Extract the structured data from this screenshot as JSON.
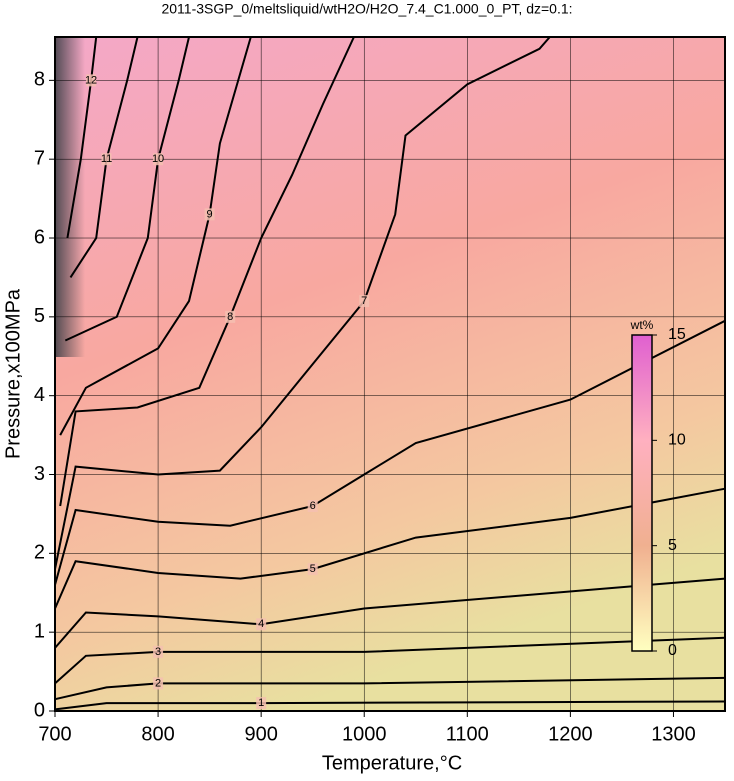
{
  "chart_data": {
    "type": "contour",
    "title": "2011-3SGP_0/meltsliquid/wtH2O/H2O_7.4_C1.000_0_PT, dz=0.1:",
    "x_label": "Temperature,°C",
    "y_label": "Pressure,x100MPa",
    "xlim": [
      700,
      1350
    ],
    "ylim": [
      0,
      8.55
    ],
    "xticks": [
      700,
      800,
      900,
      1000,
      1100,
      1200,
      1300
    ],
    "yticks": [
      0,
      1,
      2,
      3,
      4,
      5,
      6,
      7,
      8
    ],
    "grid": true,
    "line_color": "#000000",
    "contours": [
      {
        "level": 1,
        "x": [
          700,
          750,
          900,
          1350
        ],
        "y": [
          0.02,
          0.1,
          0.1,
          0.12
        ]
      },
      {
        "level": 2,
        "x": [
          700,
          750,
          800,
          1000,
          1350
        ],
        "y": [
          0.15,
          0.3,
          0.35,
          0.35,
          0.42
        ]
      },
      {
        "level": 3,
        "x": [
          700,
          730,
          800,
          1000,
          1350
        ],
        "y": [
          0.35,
          0.7,
          0.75,
          0.75,
          0.93
        ]
      },
      {
        "level": 4,
        "x": [
          700,
          730,
          800,
          900,
          1000,
          1350
        ],
        "y": [
          0.8,
          1.25,
          1.2,
          1.1,
          1.3,
          1.68
        ]
      },
      {
        "level": 5,
        "x": [
          700,
          720,
          800,
          880,
          950,
          1050,
          1200,
          1350
        ],
        "y": [
          1.3,
          1.9,
          1.75,
          1.68,
          1.8,
          2.2,
          2.45,
          2.82
        ]
      },
      {
        "level": 6,
        "x": [
          700,
          720,
          800,
          870,
          950,
          1000,
          1050,
          1200,
          1350
        ],
        "y": [
          1.6,
          2.55,
          2.4,
          2.35,
          2.6,
          3.0,
          3.4,
          3.95,
          4.95
        ]
      },
      {
        "level": 7,
        "x": [
          700,
          720,
          800,
          860,
          900,
          950,
          1000,
          1030,
          1040,
          1100,
          1170,
          1180
        ],
        "y": [
          1.8,
          3.1,
          3.0,
          3.05,
          3.6,
          4.4,
          5.2,
          6.3,
          7.3,
          7.95,
          8.4,
          8.55
        ]
      },
      {
        "level": 8,
        "x": [
          705,
          720,
          780,
          840,
          870,
          900,
          930,
          960,
          990
        ],
        "y": [
          2.6,
          3.8,
          3.85,
          4.1,
          5.0,
          6.0,
          6.8,
          7.7,
          8.55
        ]
      },
      {
        "level": 9,
        "x": [
          705,
          730,
          800,
          830,
          850,
          860,
          880,
          890
        ],
        "y": [
          3.5,
          4.1,
          4.6,
          5.2,
          6.3,
          7.2,
          8.1,
          8.55
        ]
      },
      {
        "level": 10,
        "x": [
          710,
          760,
          790,
          800,
          820,
          830
        ],
        "y": [
          4.7,
          5.0,
          6.0,
          7.0,
          8.0,
          8.55
        ]
      },
      {
        "level": 11,
        "x": [
          715,
          740,
          750,
          770,
          780
        ],
        "y": [
          5.5,
          6.0,
          7.0,
          8.0,
          8.55
        ]
      },
      {
        "level": 12,
        "x": [
          712,
          725,
          735,
          740
        ],
        "y": [
          6.0,
          7.0,
          8.0,
          8.55
        ]
      }
    ],
    "colorbar": {
      "label": "wt%",
      "lim": [
        0,
        15
      ],
      "ticks": [
        0,
        5,
        10,
        15
      ],
      "colors": [
        "#ffffc0",
        "#f0b090",
        "#ffb0c0",
        "#e060d0"
      ]
    }
  }
}
